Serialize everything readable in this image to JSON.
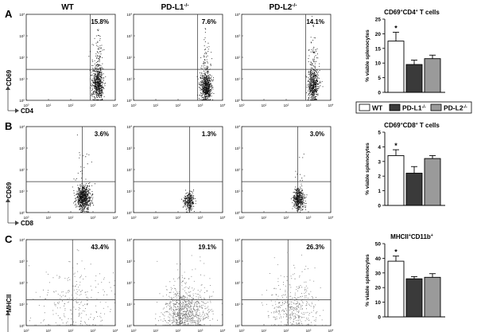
{
  "figure": {
    "columns": [
      "WT",
      "PD-L1",
      "PD-L2"
    ],
    "column_sup": "-/-",
    "legend": {
      "items": [
        {
          "label": "WT",
          "sup": "",
          "color": "#ffffff"
        },
        {
          "label": "PD-L1",
          "sup": "-/-",
          "color": "#3a3a3a"
        },
        {
          "label": "PD-L2",
          "sup": "-/-",
          "color": "#9a9a9a"
        }
      ]
    },
    "tick_exponents": [
      "0",
      "1",
      "2",
      "3",
      "4"
    ],
    "tick_base": "10"
  },
  "rows": [
    {
      "letter": "A",
      "y_marker": "CD69",
      "x_marker": "CD4",
      "percents": [
        "15.8%",
        "7.6%",
        "14.1%"
      ],
      "bar": {
        "title_parts": [
          "CD69",
          "+",
          "CD4",
          "+",
          " T cells"
        ],
        "ylabel": "% viable splenocytes",
        "yticks": [
          "0",
          "5",
          "10",
          "15",
          "20",
          "25"
        ],
        "star": "*"
      }
    },
    {
      "letter": "B",
      "y_marker": "CD69",
      "x_marker": "CD8",
      "percents": [
        "3.6%",
        "1.3%",
        "3.0%"
      ],
      "bar": {
        "title_parts": [
          "CD69",
          "+",
          "CD8",
          "+",
          " T cells"
        ],
        "ylabel": "% viable splenocytes",
        "yticks": [
          "0",
          "1",
          "2",
          "3",
          "4",
          "5"
        ],
        "star": "*"
      }
    },
    {
      "letter": "C",
      "y_marker": "MHCII",
      "x_marker": "CD11b",
      "percents": [
        "43.4%",
        "19.1%",
        "26.3%"
      ],
      "bar": {
        "title_parts": [
          "MHCII",
          "+",
          "CD11b",
          "+",
          ""
        ],
        "ylabel": "% viable splenocytes",
        "yticks": [
          "0",
          "10",
          "20",
          "30",
          "40",
          "50"
        ],
        "star": "*"
      }
    }
  ],
  "chart_data": [
    {
      "type": "bar",
      "title": "CD69+CD4+ T cells",
      "ylabel": "% viable splenocytes",
      "categories": [
        "WT",
        "PD-L1-/-",
        "PD-L2-/-"
      ],
      "values": [
        17.5,
        9.5,
        11.5
      ],
      "errors": [
        3.0,
        1.5,
        1.2
      ],
      "ylim": [
        0,
        25
      ],
      "colors": [
        "#ffffff",
        "#3a3a3a",
        "#9a9a9a"
      ]
    },
    {
      "type": "bar",
      "title": "CD69+CD8+ T cells",
      "ylabel": "% viable splenocytes",
      "categories": [
        "WT",
        "PD-L1-/-",
        "PD-L2-/-"
      ],
      "values": [
        3.4,
        2.2,
        3.2
      ],
      "errors": [
        0.4,
        0.45,
        0.2
      ],
      "ylim": [
        0,
        5
      ],
      "colors": [
        "#ffffff",
        "#3a3a3a",
        "#9a9a9a"
      ]
    },
    {
      "type": "bar",
      "title": "MHCII+CD11b+",
      "ylabel": "% viable splenocytes",
      "categories": [
        "WT",
        "PD-L1-/-",
        "PD-L2-/-"
      ],
      "values": [
        38,
        26,
        27
      ],
      "errors": [
        3.5,
        1.5,
        2.5
      ],
      "ylim": [
        0,
        50
      ],
      "colors": [
        "#ffffff",
        "#3a3a3a",
        "#9a9a9a"
      ]
    }
  ]
}
